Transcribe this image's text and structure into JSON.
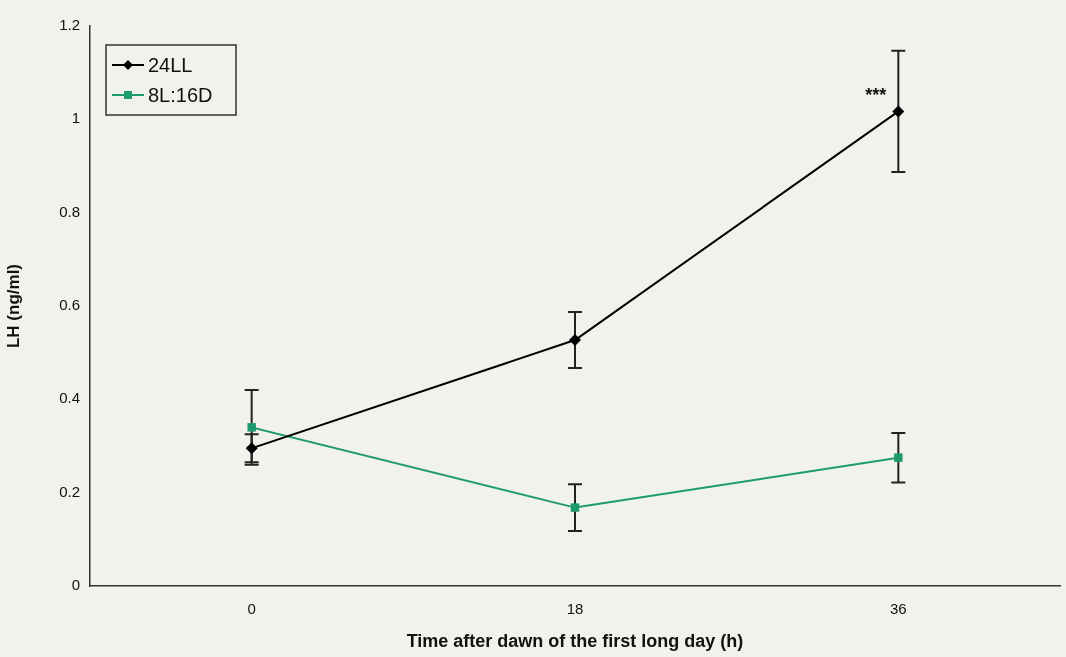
{
  "chart_data": {
    "type": "line",
    "xlabel": "Time after dawn of the first long day (h)",
    "ylabel": "LH (ng/ml)",
    "categories": [
      "0",
      "18",
      "36"
    ],
    "series": [
      {
        "name": "24LL",
        "color": "#000000",
        "marker": "diamond",
        "values": [
          0.295,
          0.527,
          1.017
        ],
        "errors": [
          0.03,
          0.06,
          0.13
        ]
      },
      {
        "name": "8L:16D",
        "color": "#1f9a6e",
        "marker": "square",
        "values": [
          0.34,
          0.168,
          0.275
        ],
        "errors": [
          0.08,
          0.05,
          0.053
        ]
      }
    ],
    "ylim": [
      0,
      1.2
    ],
    "yticks": [
      0,
      0.2,
      0.4,
      0.6,
      0.8,
      1,
      1.2
    ],
    "grid": false,
    "legend": "top left",
    "line_style": "solid",
    "annotations": [
      {
        "text": "***",
        "x": "36",
        "y": 1.05
      }
    ]
  }
}
